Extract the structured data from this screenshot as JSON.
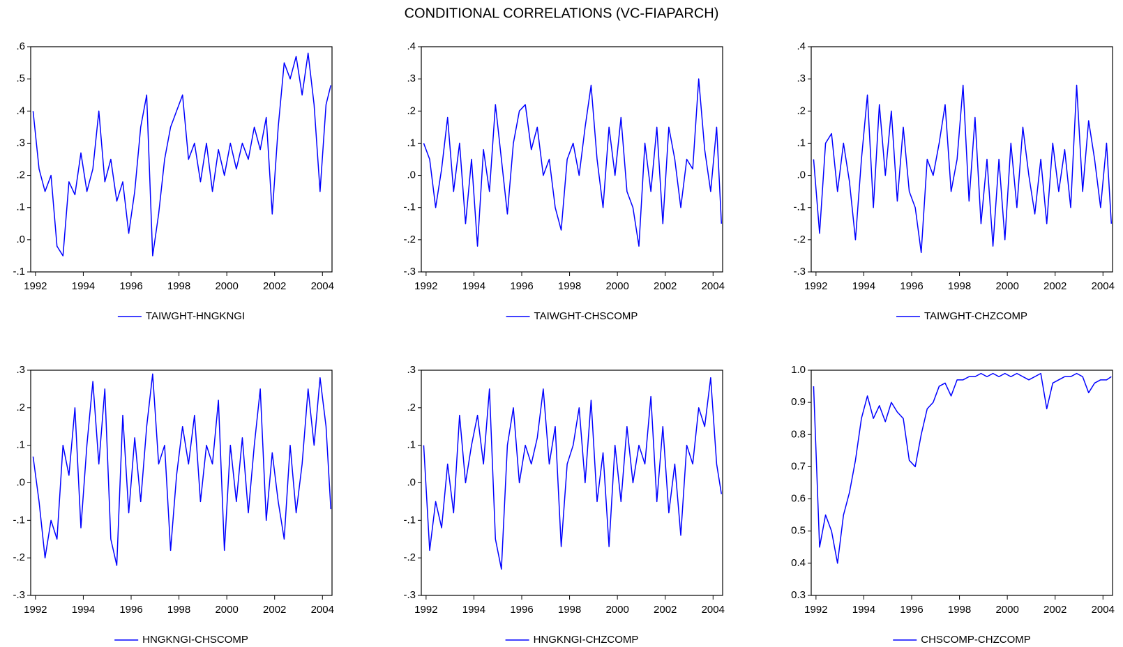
{
  "title": "CONDITIONAL CORRELATIONS (VC-FIAPARCH)",
  "chart_data": [
    {
      "type": "line",
      "legend": "bottom",
      "xlim": [
        1991.8,
        2004.4
      ],
      "xticks": [
        1992,
        1994,
        1996,
        1998,
        2000,
        2002,
        2004
      ],
      "ylim": [
        -0.1,
        0.6
      ],
      "yticks": [
        {
          "value": -0.1,
          "label": "-.1"
        },
        {
          "value": 0,
          "label": ".0"
        },
        {
          "value": 0.1,
          "label": ".1"
        },
        {
          "value": 0.2,
          "label": ".2"
        },
        {
          "value": 0.3,
          "label": ".3"
        },
        {
          "value": 0.4,
          "label": ".4"
        },
        {
          "value": 0.5,
          "label": ".5"
        },
        {
          "value": 0.6,
          "label": ".6"
        }
      ],
      "x": [
        1991.9,
        1992.15,
        1992.4,
        1992.65,
        1992.9,
        1993.15,
        1993.4,
        1993.65,
        1993.9,
        1994.15,
        1994.4,
        1994.65,
        1994.9,
        1995.15,
        1995.4,
        1995.65,
        1995.9,
        1996.15,
        1996.4,
        1996.65,
        1996.9,
        1997.15,
        1997.4,
        1997.65,
        1997.9,
        1998.15,
        1998.4,
        1998.65,
        1998.9,
        1999.15,
        1999.4,
        1999.65,
        1999.9,
        2000.15,
        2000.4,
        2000.65,
        2000.9,
        2001.15,
        2001.4,
        2001.65,
        2001.9,
        2002.15,
        2002.4,
        2002.65,
        2002.9,
        2003.15,
        2003.4,
        2003.65,
        2003.9,
        2004.15,
        2004.35
      ],
      "series": [
        {
          "name": "TAIWGHT-HNGKNGI",
          "color": "#0000ff",
          "values": [
            0.4,
            0.22,
            0.15,
            0.2,
            -0.02,
            -0.05,
            0.18,
            0.14,
            0.27,
            0.15,
            0.22,
            0.4,
            0.18,
            0.25,
            0.12,
            0.18,
            0.02,
            0.15,
            0.35,
            0.45,
            -0.05,
            0.08,
            0.25,
            0.35,
            0.4,
            0.45,
            0.25,
            0.3,
            0.18,
            0.3,
            0.15,
            0.28,
            0.2,
            0.3,
            0.22,
            0.3,
            0.25,
            0.35,
            0.28,
            0.38,
            0.08,
            0.35,
            0.55,
            0.5,
            0.57,
            0.45,
            0.58,
            0.42,
            0.15,
            0.42,
            0.48
          ]
        }
      ]
    },
    {
      "type": "line",
      "legend": "bottom",
      "xlim": [
        1991.8,
        2004.4
      ],
      "xticks": [
        1992,
        1994,
        1996,
        1998,
        2000,
        2002,
        2004
      ],
      "ylim": [
        -0.3,
        0.4
      ],
      "yticks": [
        {
          "value": -0.3,
          "label": "-.3"
        },
        {
          "value": -0.2,
          "label": "-.2"
        },
        {
          "value": -0.1,
          "label": "-.1"
        },
        {
          "value": 0,
          "label": ".0"
        },
        {
          "value": 0.1,
          "label": ".1"
        },
        {
          "value": 0.2,
          "label": ".2"
        },
        {
          "value": 0.3,
          "label": ".3"
        },
        {
          "value": 0.4,
          "label": ".4"
        }
      ],
      "x": [
        1991.9,
        1992.15,
        1992.4,
        1992.65,
        1992.9,
        1993.15,
        1993.4,
        1993.65,
        1993.9,
        1994.15,
        1994.4,
        1994.65,
        1994.9,
        1995.15,
        1995.4,
        1995.65,
        1995.9,
        1996.15,
        1996.4,
        1996.65,
        1996.9,
        1997.15,
        1997.4,
        1997.65,
        1997.9,
        1998.15,
        1998.4,
        1998.65,
        1998.9,
        1999.15,
        1999.4,
        1999.65,
        1999.9,
        2000.15,
        2000.4,
        2000.65,
        2000.9,
        2001.15,
        2001.4,
        2001.65,
        2001.9,
        2002.15,
        2002.4,
        2002.65,
        2002.9,
        2003.15,
        2003.4,
        2003.65,
        2003.9,
        2004.15,
        2004.35
      ],
      "series": [
        {
          "name": "TAIWGHT-CHSCOMP",
          "color": "#0000ff",
          "values": [
            0.1,
            0.05,
            -0.1,
            0.02,
            0.18,
            -0.05,
            0.1,
            -0.15,
            0.05,
            -0.22,
            0.08,
            -0.05,
            0.22,
            0.05,
            -0.12,
            0.1,
            0.2,
            0.22,
            0.08,
            0.15,
            0.0,
            0.05,
            -0.1,
            -0.17,
            0.05,
            0.1,
            0.0,
            0.15,
            0.28,
            0.05,
            -0.1,
            0.15,
            0.0,
            0.18,
            -0.05,
            -0.1,
            -0.22,
            0.1,
            -0.05,
            0.15,
            -0.15,
            0.15,
            0.05,
            -0.1,
            0.05,
            0.02,
            0.3,
            0.08,
            -0.05,
            0.15,
            -0.15
          ]
        }
      ]
    },
    {
      "type": "line",
      "legend": "bottom",
      "xlim": [
        1991.8,
        2004.4
      ],
      "xticks": [
        1992,
        1994,
        1996,
        1998,
        2000,
        2002,
        2004
      ],
      "ylim": [
        -0.3,
        0.4
      ],
      "yticks": [
        {
          "value": -0.3,
          "label": "-.3"
        },
        {
          "value": -0.2,
          "label": "-.2"
        },
        {
          "value": -0.1,
          "label": "-.1"
        },
        {
          "value": 0,
          "label": ".0"
        },
        {
          "value": 0.1,
          "label": ".1"
        },
        {
          "value": 0.2,
          "label": ".2"
        },
        {
          "value": 0.3,
          "label": ".3"
        },
        {
          "value": 0.4,
          "label": ".4"
        }
      ],
      "x": [
        1991.9,
        1992.15,
        1992.4,
        1992.65,
        1992.9,
        1993.15,
        1993.4,
        1993.65,
        1993.9,
        1994.15,
        1994.4,
        1994.65,
        1994.9,
        1995.15,
        1995.4,
        1995.65,
        1995.9,
        1996.15,
        1996.4,
        1996.65,
        1996.9,
        1997.15,
        1997.4,
        1997.65,
        1997.9,
        1998.15,
        1998.4,
        1998.65,
        1998.9,
        1999.15,
        1999.4,
        1999.65,
        1999.9,
        2000.15,
        2000.4,
        2000.65,
        2000.9,
        2001.15,
        2001.4,
        2001.65,
        2001.9,
        2002.15,
        2002.4,
        2002.65,
        2002.9,
        2003.15,
        2003.4,
        2003.65,
        2003.9,
        2004.15,
        2004.35
      ],
      "series": [
        {
          "name": "TAIWGHT-CHZCOMP",
          "color": "#0000ff",
          "values": [
            0.05,
            -0.18,
            0.1,
            0.13,
            -0.05,
            0.1,
            -0.02,
            -0.2,
            0.05,
            0.25,
            -0.1,
            0.22,
            0.0,
            0.2,
            -0.08,
            0.15,
            -0.05,
            -0.1,
            -0.24,
            0.05,
            0.0,
            0.1,
            0.22,
            -0.05,
            0.05,
            0.28,
            -0.08,
            0.18,
            -0.15,
            0.05,
            -0.22,
            0.05,
            -0.2,
            0.1,
            -0.1,
            0.15,
            0.0,
            -0.12,
            0.05,
            -0.15,
            0.1,
            -0.05,
            0.08,
            -0.1,
            0.28,
            -0.05,
            0.17,
            0.05,
            -0.1,
            0.1,
            -0.15
          ]
        }
      ]
    },
    {
      "type": "line",
      "legend": "bottom",
      "xlim": [
        1991.8,
        2004.4
      ],
      "xticks": [
        1992,
        1994,
        1996,
        1998,
        2000,
        2002,
        2004
      ],
      "ylim": [
        -0.3,
        0.3
      ],
      "yticks": [
        {
          "value": -0.3,
          "label": "-.3"
        },
        {
          "value": -0.2,
          "label": "-.2"
        },
        {
          "value": -0.1,
          "label": "-.1"
        },
        {
          "value": 0,
          "label": ".0"
        },
        {
          "value": 0.1,
          "label": ".1"
        },
        {
          "value": 0.2,
          "label": ".2"
        },
        {
          "value": 0.3,
          "label": ".3"
        }
      ],
      "x": [
        1991.9,
        1992.15,
        1992.4,
        1992.65,
        1992.9,
        1993.15,
        1993.4,
        1993.65,
        1993.9,
        1994.15,
        1994.4,
        1994.65,
        1994.9,
        1995.15,
        1995.4,
        1995.65,
        1995.9,
        1996.15,
        1996.4,
        1996.65,
        1996.9,
        1997.15,
        1997.4,
        1997.65,
        1997.9,
        1998.15,
        1998.4,
        1998.65,
        1998.9,
        1999.15,
        1999.4,
        1999.65,
        1999.9,
        2000.15,
        2000.4,
        2000.65,
        2000.9,
        2001.15,
        2001.4,
        2001.65,
        2001.9,
        2002.15,
        2002.4,
        2002.65,
        2002.9,
        2003.15,
        2003.4,
        2003.65,
        2003.9,
        2004.15,
        2004.35
      ],
      "series": [
        {
          "name": "HNGKNGI-CHSCOMP",
          "color": "#0000ff",
          "values": [
            0.07,
            -0.05,
            -0.2,
            -0.1,
            -0.15,
            0.1,
            0.02,
            0.2,
            -0.12,
            0.1,
            0.27,
            0.05,
            0.25,
            -0.15,
            -0.22,
            0.18,
            -0.08,
            0.12,
            -0.05,
            0.15,
            0.29,
            0.05,
            0.1,
            -0.18,
            0.02,
            0.15,
            0.05,
            0.18,
            -0.05,
            0.1,
            0.05,
            0.22,
            -0.18,
            0.1,
            -0.05,
            0.12,
            -0.08,
            0.1,
            0.25,
            -0.1,
            0.08,
            -0.05,
            -0.15,
            0.1,
            -0.08,
            0.05,
            0.25,
            0.1,
            0.28,
            0.15,
            -0.07
          ]
        }
      ]
    },
    {
      "type": "line",
      "legend": "bottom",
      "xlim": [
        1991.8,
        2004.4
      ],
      "xticks": [
        1992,
        1994,
        1996,
        1998,
        2000,
        2002,
        2004
      ],
      "ylim": [
        -0.3,
        0.3
      ],
      "yticks": [
        {
          "value": -0.3,
          "label": "-.3"
        },
        {
          "value": -0.2,
          "label": "-.2"
        },
        {
          "value": -0.1,
          "label": "-.1"
        },
        {
          "value": 0,
          "label": ".0"
        },
        {
          "value": 0.1,
          "label": ".1"
        },
        {
          "value": 0.2,
          "label": ".2"
        },
        {
          "value": 0.3,
          "label": ".3"
        }
      ],
      "x": [
        1991.9,
        1992.15,
        1992.4,
        1992.65,
        1992.9,
        1993.15,
        1993.4,
        1993.65,
        1993.9,
        1994.15,
        1994.4,
        1994.65,
        1994.9,
        1995.15,
        1995.4,
        1995.65,
        1995.9,
        1996.15,
        1996.4,
        1996.65,
        1996.9,
        1997.15,
        1997.4,
        1997.65,
        1997.9,
        1998.15,
        1998.4,
        1998.65,
        1998.9,
        1999.15,
        1999.4,
        1999.65,
        1999.9,
        2000.15,
        2000.4,
        2000.65,
        2000.9,
        2001.15,
        2001.4,
        2001.65,
        2001.9,
        2002.15,
        2002.4,
        2002.65,
        2002.9,
        2003.15,
        2003.4,
        2003.65,
        2003.9,
        2004.15,
        2004.35
      ],
      "series": [
        {
          "name": "HNGKNGI-CHZCOMP",
          "color": "#0000ff",
          "values": [
            0.1,
            -0.18,
            -0.05,
            -0.12,
            0.05,
            -0.08,
            0.18,
            0.0,
            0.1,
            0.18,
            0.05,
            0.25,
            -0.15,
            -0.23,
            0.1,
            0.2,
            0.0,
            0.1,
            0.05,
            0.12,
            0.25,
            0.05,
            0.15,
            -0.17,
            0.05,
            0.1,
            0.2,
            0.0,
            0.22,
            -0.05,
            0.08,
            -0.17,
            0.1,
            -0.05,
            0.15,
            0.0,
            0.1,
            0.05,
            0.23,
            -0.05,
            0.15,
            -0.08,
            0.05,
            -0.14,
            0.1,
            0.05,
            0.2,
            0.15,
            0.28,
            0.05,
            -0.03
          ]
        }
      ]
    },
    {
      "type": "line",
      "legend": "bottom",
      "xlim": [
        1991.8,
        2004.4
      ],
      "xticks": [
        1992,
        1994,
        1996,
        1998,
        2000,
        2002,
        2004
      ],
      "ylim": [
        0.3,
        1.0
      ],
      "yticks": [
        0.3,
        0.4,
        0.5,
        0.6,
        0.7,
        0.8,
        0.9,
        {
          "value": 1.0,
          "label": "1.0"
        }
      ],
      "x": [
        1991.9,
        1992.15,
        1992.4,
        1992.65,
        1992.9,
        1993.15,
        1993.4,
        1993.65,
        1993.9,
        1994.15,
        1994.4,
        1994.65,
        1994.9,
        1995.15,
        1995.4,
        1995.65,
        1995.9,
        1996.15,
        1996.4,
        1996.65,
        1996.9,
        1997.15,
        1997.4,
        1997.65,
        1997.9,
        1998.15,
        1998.4,
        1998.65,
        1998.9,
        1999.15,
        1999.4,
        1999.65,
        1999.9,
        2000.15,
        2000.4,
        2000.65,
        2000.9,
        2001.15,
        2001.4,
        2001.65,
        2001.9,
        2002.15,
        2002.4,
        2002.65,
        2002.9,
        2003.15,
        2003.4,
        2003.65,
        2003.9,
        2004.15,
        2004.35
      ],
      "series": [
        {
          "name": "CHSCOMP-CHZCOMP",
          "color": "#0000ff",
          "values": [
            0.95,
            0.45,
            0.55,
            0.5,
            0.4,
            0.55,
            0.62,
            0.72,
            0.85,
            0.92,
            0.85,
            0.89,
            0.84,
            0.9,
            0.87,
            0.85,
            0.72,
            0.7,
            0.8,
            0.88,
            0.9,
            0.95,
            0.96,
            0.92,
            0.97,
            0.97,
            0.98,
            0.98,
            0.99,
            0.98,
            0.99,
            0.98,
            0.99,
            0.98,
            0.99,
            0.98,
            0.97,
            0.98,
            0.99,
            0.88,
            0.96,
            0.97,
            0.98,
            0.98,
            0.99,
            0.98,
            0.93,
            0.96,
            0.97,
            0.97,
            0.98
          ]
        }
      ]
    }
  ]
}
